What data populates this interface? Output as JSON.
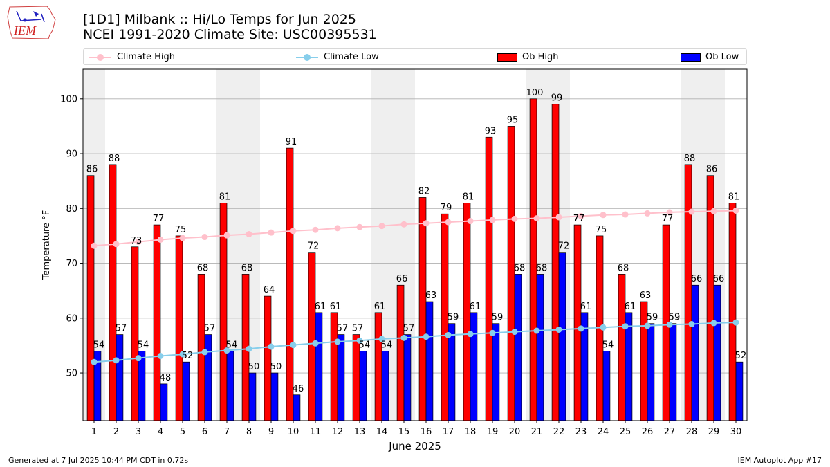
{
  "header": {
    "logo_text": "IEM",
    "title_line1": "[1D1] Milbank :: Hi/Lo Temps for Jun 2025",
    "title_line2": "NCEI 1991-2020 Climate Site: USC00395531"
  },
  "legend": [
    {
      "label": "Climate High",
      "kind": "line-marker",
      "color": "#ffc0cb"
    },
    {
      "label": "Climate Low",
      "kind": "line-marker",
      "color": "#87ceeb"
    },
    {
      "label": "Ob High",
      "kind": "bar",
      "color": "#ff0000"
    },
    {
      "label": "Ob Low",
      "kind": "bar",
      "color": "#0000ff"
    }
  ],
  "footer": {
    "left": "Generated at 7 Jul 2025 10:44 PM CDT in 0.72s",
    "right": "IEM Autoplot App #17"
  },
  "chart_data": {
    "type": "bar",
    "xlabel": "June 2025",
    "ylabel": "Temperature °F",
    "ylim": [
      41.3,
      105.4
    ],
    "yticks": [
      50,
      60,
      70,
      80,
      90,
      100
    ],
    "grid": true,
    "legend_position": "top",
    "categories": [
      1,
      2,
      3,
      4,
      5,
      6,
      7,
      8,
      9,
      10,
      11,
      12,
      13,
      14,
      15,
      16,
      17,
      18,
      19,
      20,
      21,
      22,
      23,
      24,
      25,
      26,
      27,
      28,
      29,
      30
    ],
    "weekend_shading": [
      [
        1,
        1
      ],
      [
        7,
        8
      ],
      [
        14,
        15
      ],
      [
        21,
        22
      ],
      [
        28,
        29
      ]
    ],
    "series": [
      {
        "name": "Ob High",
        "kind": "bar",
        "color": "#ff0000",
        "values": [
          86,
          88,
          73,
          77,
          75,
          68,
          81,
          68,
          64,
          91,
          72,
          61,
          57,
          61,
          66,
          82,
          79,
          81,
          93,
          95,
          100,
          99,
          77,
          75,
          68,
          63,
          77,
          88,
          86,
          81
        ]
      },
      {
        "name": "Ob Low",
        "kind": "bar",
        "color": "#0000ff",
        "values": [
          54,
          57,
          54,
          48,
          52,
          57,
          54,
          50,
          50,
          46,
          61,
          57,
          54,
          54,
          57,
          63,
          59,
          61,
          59,
          68,
          68,
          72,
          61,
          54,
          61,
          59,
          59,
          66,
          66,
          52
        ]
      },
      {
        "name": "Climate High",
        "kind": "line",
        "color": "#ffc0cb",
        "values": [
          73.2,
          73.5,
          73.9,
          74.3,
          74.6,
          74.8,
          75.1,
          75.3,
          75.6,
          75.9,
          76.1,
          76.4,
          76.6,
          76.8,
          77.1,
          77.3,
          77.5,
          77.7,
          77.9,
          78.1,
          78.2,
          78.4,
          78.6,
          78.8,
          78.9,
          79.1,
          79.3,
          79.4,
          79.5,
          79.6
        ]
      },
      {
        "name": "Climate Low",
        "kind": "line",
        "color": "#87ceeb",
        "values": [
          52.0,
          52.3,
          52.7,
          53.1,
          53.4,
          53.8,
          54.1,
          54.4,
          54.8,
          55.1,
          55.4,
          55.7,
          55.9,
          56.2,
          56.4,
          56.6,
          56.9,
          57.1,
          57.3,
          57.5,
          57.7,
          57.9,
          58.1,
          58.3,
          58.5,
          58.6,
          58.8,
          58.9,
          59.1,
          59.2
        ]
      }
    ]
  }
}
